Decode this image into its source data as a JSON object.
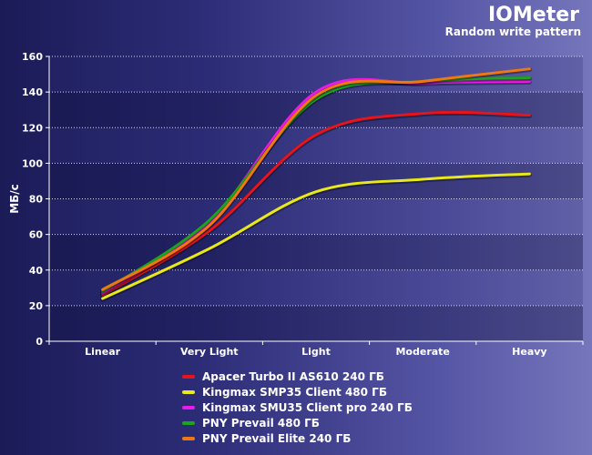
{
  "chart_data": {
    "type": "line",
    "title": "IOMeter",
    "subtitle": "Random write pattern",
    "ylabel": "МБ/с",
    "xlabel": "",
    "categories": [
      "Linear",
      "Very Light",
      "Light",
      "Moderate",
      "Heavy"
    ],
    "ylim": [
      0,
      160
    ],
    "yticks": [
      0,
      20,
      40,
      60,
      80,
      100,
      120,
      140,
      160
    ],
    "grid": true,
    "legend_position": "bottom",
    "series": [
      {
        "name": "Apacer Turbo II AS610 240 ГБ",
        "color": "#e8141c",
        "values": [
          26,
          62,
          116,
          128,
          127
        ]
      },
      {
        "name": "Kingmax SMP35 Client 480 ГБ",
        "color": "#e8e81c",
        "values": [
          24,
          52,
          84,
          91,
          94
        ]
      },
      {
        "name": "Kingmax SMU35 Client pro 240 ГБ",
        "color": "#e81ce8",
        "values": [
          27,
          67,
          140,
          145,
          146
        ]
      },
      {
        "name": "PNY Prevail 480 ГБ",
        "color": "#1ca41c",
        "values": [
          28,
          68,
          136,
          146,
          148
        ]
      },
      {
        "name": "PNY Prevail Elite 240 ГБ",
        "color": "#f07814",
        "values": [
          29,
          65,
          138,
          146,
          153
        ]
      }
    ]
  }
}
